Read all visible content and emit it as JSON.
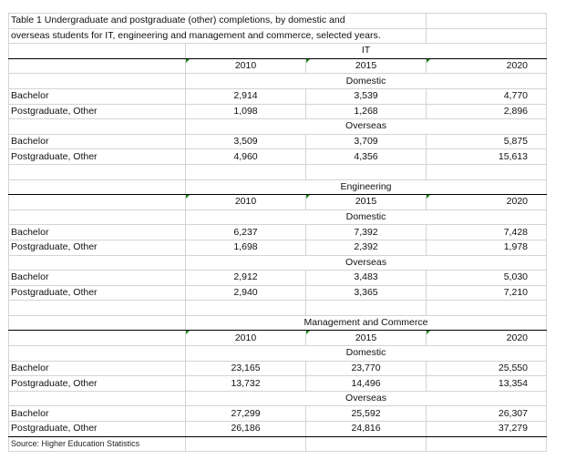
{
  "title": {
    "line1": "Table 1  Undergraduate and postgraduate (other) completions, by domestic and",
    "line2": " overseas students for IT, engineering and management and commerce, selected years."
  },
  "years": [
    "2010",
    "2015",
    "2020"
  ],
  "group_labels": {
    "domestic": "Domestic",
    "overseas": "Overseas"
  },
  "row_labels": {
    "bachelor": "Bachelor",
    "postgrad": "Postgraduate, Other"
  },
  "sections": [
    {
      "name": "IT",
      "domestic": {
        "bachelor": [
          "2,914",
          "3,539",
          "4,770"
        ],
        "postgrad": [
          "1,098",
          "1,268",
          "2,896"
        ]
      },
      "overseas": {
        "bachelor": [
          "3,509",
          "3,709",
          "5,875"
        ],
        "postgrad": [
          "4,960",
          "4,356",
          "15,613"
        ]
      }
    },
    {
      "name": "Engineering",
      "domestic": {
        "bachelor": [
          "6,237",
          "7,392",
          "7,428"
        ],
        "postgrad": [
          "1,698",
          "2,392",
          "1,978"
        ]
      },
      "overseas": {
        "bachelor": [
          "2,912",
          "3,483",
          "5,030"
        ],
        "postgrad": [
          "2,940",
          "3,365",
          "7,210"
        ]
      }
    },
    {
      "name": "Management and Commerce",
      "domestic": {
        "bachelor": [
          "23,165",
          "23,770",
          "25,550"
        ],
        "postgrad": [
          "13,732",
          "14,496",
          "13,354"
        ]
      },
      "overseas": {
        "bachelor": [
          "27,299",
          "25,592",
          "26,307"
        ],
        "postgrad": [
          "26,186",
          "24,816",
          "37,279"
        ]
      }
    }
  ],
  "source": "Source: Higher Education Statistics",
  "colors": {
    "error_indicator": "#1a8a1a",
    "thick_border": "#000000",
    "gridline": "#d4d4d4"
  }
}
